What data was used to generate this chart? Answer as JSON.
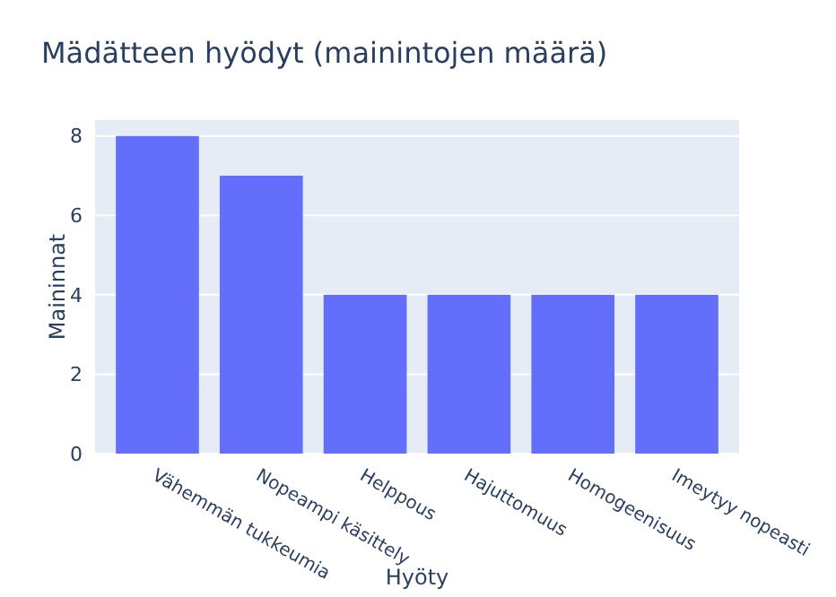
{
  "chart_data": {
    "type": "bar",
    "title": "Mädätteen hyödyt (mainintojen määrä)",
    "xlabel": "Hyöty",
    "ylabel": "Maininnat",
    "categories": [
      "Vähemmän tukkeumia",
      "Nopeampi käsittely",
      "Helppous",
      "Hajuttomuus",
      "Homogeenisuus",
      "Imeytyy nopeasti"
    ],
    "values": [
      8,
      7,
      4,
      4,
      4,
      4
    ],
    "color": "#636efa",
    "ylim": [
      0,
      8.4
    ],
    "yticks": [
      0,
      2,
      4,
      6,
      8
    ],
    "grid": "y"
  }
}
